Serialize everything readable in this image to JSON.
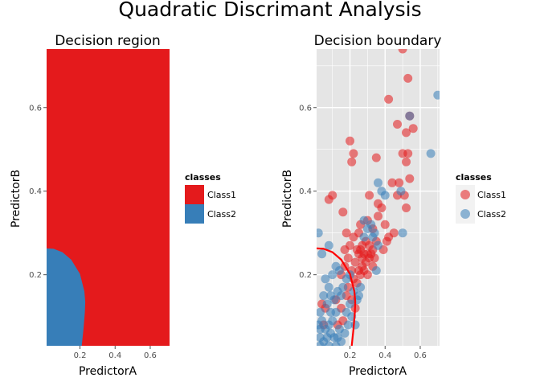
{
  "title": "Quadratic Discrimant Analysis",
  "colors": {
    "class1": "#e41a1c",
    "class2": "#377eb8",
    "boundary": "#ff0000",
    "panel_bg": "#e5e5e5",
    "grid": "#ffffff",
    "tick": "#4d4d4d"
  },
  "chart_data": [
    {
      "type": "heatmap",
      "title": "Decision region",
      "xlabel": "PredictorA",
      "ylabel": "PredictorB",
      "xlim": [
        0.01,
        0.71
      ],
      "ylim": [
        0.03,
        0.74
      ],
      "xticks": [
        0.2,
        0.4,
        0.6
      ],
      "yticks": [
        0.2,
        0.4,
        0.6
      ],
      "background_class": "Class1",
      "region_class": "Class2",
      "region_boundary": [
        [
          0.01,
          0.263
        ],
        [
          0.05,
          0.262
        ],
        [
          0.1,
          0.254
        ],
        [
          0.15,
          0.236
        ],
        [
          0.2,
          0.202
        ],
        [
          0.225,
          0.16
        ],
        [
          0.23,
          0.135
        ],
        [
          0.228,
          0.11
        ],
        [
          0.22,
          0.07
        ],
        [
          0.21,
          0.03
        ],
        [
          0.01,
          0.03
        ]
      ],
      "legend": {
        "title": "classes",
        "entries": [
          "Class1",
          "Class2"
        ],
        "position": "right"
      }
    },
    {
      "type": "scatter",
      "title": "Decision boundary",
      "xlabel": "PredictorA",
      "ylabel": "PredictorB",
      "xlim": [
        0.01,
        0.71
      ],
      "ylim": [
        0.03,
        0.74
      ],
      "xticks": [
        0.2,
        0.4,
        0.6
      ],
      "yticks": [
        0.2,
        0.4,
        0.6
      ],
      "grid": true,
      "boundary": [
        [
          0.01,
          0.263
        ],
        [
          0.05,
          0.262
        ],
        [
          0.1,
          0.254
        ],
        [
          0.15,
          0.236
        ],
        [
          0.2,
          0.202
        ],
        [
          0.225,
          0.16
        ],
        [
          0.23,
          0.135
        ],
        [
          0.228,
          0.11
        ],
        [
          0.22,
          0.07
        ],
        [
          0.21,
          0.03
        ]
      ],
      "legend": {
        "title": "classes",
        "entries": [
          "Class1",
          "Class2"
        ],
        "position": "right"
      },
      "series": [
        {
          "name": "Class1",
          "points": [
            [
              0.5,
              0.74
            ],
            [
              0.53,
              0.67
            ],
            [
              0.54,
              0.58
            ],
            [
              0.56,
              0.55
            ],
            [
              0.52,
              0.54
            ],
            [
              0.42,
              0.62
            ],
            [
              0.47,
              0.56
            ],
            [
              0.5,
              0.49
            ],
            [
              0.53,
              0.49
            ],
            [
              0.2,
              0.52
            ],
            [
              0.22,
              0.49
            ],
            [
              0.21,
              0.47
            ],
            [
              0.35,
              0.48
            ],
            [
              0.52,
              0.47
            ],
            [
              0.44,
              0.42
            ],
            [
              0.48,
              0.42
            ],
            [
              0.54,
              0.43
            ],
            [
              0.47,
              0.39
            ],
            [
              0.51,
              0.39
            ],
            [
              0.52,
              0.36
            ],
            [
              0.1,
              0.39
            ],
            [
              0.08,
              0.38
            ],
            [
              0.31,
              0.39
            ],
            [
              0.16,
              0.35
            ],
            [
              0.18,
              0.3
            ],
            [
              0.2,
              0.27
            ],
            [
              0.22,
              0.29
            ],
            [
              0.25,
              0.3
            ],
            [
              0.26,
              0.32
            ],
            [
              0.3,
              0.33
            ],
            [
              0.33,
              0.31
            ],
            [
              0.36,
              0.34
            ],
            [
              0.38,
              0.36
            ],
            [
              0.4,
              0.32
            ],
            [
              0.42,
              0.29
            ],
            [
              0.45,
              0.3
            ],
            [
              0.27,
              0.27
            ],
            [
              0.29,
              0.28
            ],
            [
              0.31,
              0.27
            ],
            [
              0.33,
              0.26
            ],
            [
              0.35,
              0.28
            ],
            [
              0.25,
              0.25
            ],
            [
              0.27,
              0.24
            ],
            [
              0.29,
              0.23
            ],
            [
              0.31,
              0.24
            ],
            [
              0.33,
              0.22
            ],
            [
              0.23,
              0.23
            ],
            [
              0.21,
              0.21
            ],
            [
              0.22,
              0.19
            ],
            [
              0.24,
              0.18
            ],
            [
              0.26,
              0.2
            ],
            [
              0.28,
              0.21
            ],
            [
              0.3,
              0.2
            ],
            [
              0.17,
              0.22
            ],
            [
              0.15,
              0.2
            ],
            [
              0.19,
              0.17
            ],
            [
              0.18,
              0.15
            ],
            [
              0.21,
              0.14
            ],
            [
              0.23,
              0.12
            ],
            [
              0.15,
              0.12
            ],
            [
              0.12,
              0.14
            ],
            [
              0.16,
              0.09
            ],
            [
              0.13,
              0.08
            ],
            [
              0.04,
              0.13
            ],
            [
              0.06,
              0.12
            ],
            [
              0.05,
              0.08
            ],
            [
              0.24,
              0.26
            ],
            [
              0.26,
              0.26
            ],
            [
              0.28,
              0.25
            ],
            [
              0.3,
              0.25
            ],
            [
              0.32,
              0.25
            ],
            [
              0.34,
              0.24
            ],
            [
              0.27,
              0.22
            ],
            [
              0.25,
              0.21
            ],
            [
              0.19,
              0.24
            ],
            [
              0.17,
              0.26
            ],
            [
              0.39,
              0.26
            ],
            [
              0.41,
              0.28
            ],
            [
              0.36,
              0.37
            ]
          ]
        },
        {
          "name": "Class2",
          "points": [
            [
              0.7,
              0.63
            ],
            [
              0.66,
              0.49
            ],
            [
              0.54,
              0.58
            ],
            [
              0.36,
              0.42
            ],
            [
              0.38,
              0.4
            ],
            [
              0.4,
              0.39
            ],
            [
              0.49,
              0.4
            ],
            [
              0.5,
              0.3
            ],
            [
              0.28,
              0.33
            ],
            [
              0.3,
              0.31
            ],
            [
              0.32,
              0.32
            ],
            [
              0.34,
              0.3
            ],
            [
              0.33,
              0.29
            ],
            [
              0.28,
              0.29
            ],
            [
              0.36,
              0.27
            ],
            [
              0.35,
              0.21
            ],
            [
              0.02,
              0.3
            ],
            [
              0.04,
              0.25
            ],
            [
              0.08,
              0.27
            ],
            [
              0.12,
              0.22
            ],
            [
              0.1,
              0.2
            ],
            [
              0.14,
              0.21
            ],
            [
              0.06,
              0.19
            ],
            [
              0.08,
              0.17
            ],
            [
              0.05,
              0.15
            ],
            [
              0.07,
              0.13
            ],
            [
              0.09,
              0.15
            ],
            [
              0.11,
              0.14
            ],
            [
              0.13,
              0.16
            ],
            [
              0.15,
              0.15
            ],
            [
              0.12,
              0.11
            ],
            [
              0.1,
              0.09
            ],
            [
              0.08,
              0.08
            ],
            [
              0.06,
              0.07
            ],
            [
              0.04,
              0.09
            ],
            [
              0.03,
              0.05
            ],
            [
              0.05,
              0.04
            ],
            [
              0.07,
              0.05
            ],
            [
              0.09,
              0.06
            ],
            [
              0.11,
              0.05
            ],
            [
              0.13,
              0.05
            ],
            [
              0.15,
              0.04
            ],
            [
              0.17,
              0.06
            ],
            [
              0.19,
              0.08
            ],
            [
              0.21,
              0.1
            ],
            [
              0.23,
              0.08
            ],
            [
              0.18,
              0.11
            ],
            [
              0.2,
              0.13
            ],
            [
              0.22,
              0.16
            ],
            [
              0.24,
              0.14
            ],
            [
              0.16,
              0.17
            ],
            [
              0.18,
              0.19
            ],
            [
              0.2,
              0.2
            ],
            [
              0.09,
              0.11
            ],
            [
              0.03,
              0.11
            ],
            [
              0.02,
              0.08
            ],
            [
              0.03,
              0.07
            ],
            [
              0.14,
              0.07
            ],
            [
              0.12,
              0.03
            ],
            [
              0.08,
              0.03
            ],
            [
              0.03,
              0.03
            ],
            [
              0.25,
              0.15
            ],
            [
              0.26,
              0.17
            ]
          ]
        }
      ]
    }
  ]
}
